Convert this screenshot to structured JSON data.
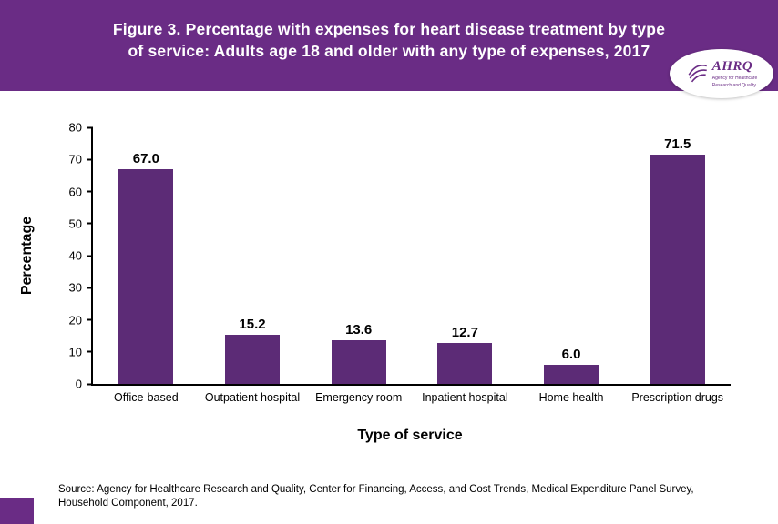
{
  "header": {
    "title_line1": "Figure 3. Percentage with expenses for heart disease treatment by type",
    "title_line2": "of service: Adults age 18 and older with any type of expenses, 2017"
  },
  "logo": {
    "name": "AHRQ",
    "tagline_line1": "Agency for Healthcare",
    "tagline_line2": "Research and Quality"
  },
  "chart_data": {
    "type": "bar",
    "title": "Figure 3. Percentage with expenses for heart disease treatment by type of service: Adults age 18 and older with any type of expenses, 2017",
    "categories": [
      "Office-based",
      "Outpatient hospital",
      "Emergency room",
      "Inpatient hospital",
      "Home health",
      "Prescription drugs"
    ],
    "values": [
      67.0,
      15.2,
      13.6,
      12.7,
      6.0,
      71.5
    ],
    "value_labels": [
      "67.0",
      "15.2",
      "13.6",
      "12.7",
      "6.0",
      "71.5"
    ],
    "xlabel": "Type of service",
    "ylabel": "Percentage",
    "ylim": [
      0,
      80
    ],
    "ytick_step": 10,
    "grid": false,
    "legend": "none",
    "bar_color": "#5c2b76"
  },
  "footer": {
    "source": "Source: Agency for Healthcare Research and Quality, Center for Financing, Access, and Cost Trends, Medical Expenditure Panel Survey, Household Component, 2017."
  },
  "colors": {
    "header": "#6a2c85",
    "bar": "#5c2b76",
    "corner": "#6a2c85",
    "title_text": "#ffffff"
  }
}
